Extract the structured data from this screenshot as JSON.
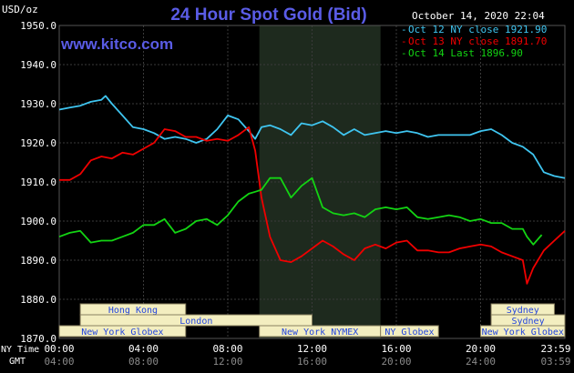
{
  "chart_data": {
    "type": "line",
    "title": "24 Hour Spot Gold (Bid)",
    "ylabel": "USD/oz",
    "watermark": "www.kitco.com",
    "timestamp": "October 14, 2020 22:04",
    "ylim": [
      1870,
      1950
    ],
    "yticks": [
      "1950.0",
      "1940.0",
      "1930.0",
      "1920.0",
      "1910.0",
      "1900.0",
      "1890.0",
      "1880.0",
      "1870.0"
    ],
    "x_axis_ny_label": "NY Time",
    "x_axis_gmt_label": "GMT",
    "x_ticks_ny": [
      "00:00",
      "04:00",
      "08:00",
      "12:00",
      "16:00",
      "20:00",
      "23:59"
    ],
    "x_ticks_gmt": [
      "04:00",
      "08:00",
      "12:00",
      "16:00",
      "20:00",
      "24:00",
      "03:59"
    ],
    "x_tick_hours": [
      0,
      4,
      8,
      12,
      16,
      20,
      24
    ],
    "shaded_period_hours": [
      9.5,
      15.25
    ],
    "sessions": [
      {
        "label": "Hong Kong",
        "start": 1.0,
        "end": 6.0,
        "row": 0
      },
      {
        "label": "Sydney",
        "start": 20.5,
        "end": 23.5,
        "row": 0
      },
      {
        "label": "London",
        "start": 1.0,
        "end": 12.0,
        "row": 1
      },
      {
        "label": "Sydney",
        "start": 20.5,
        "end": 24.0,
        "row": 1
      },
      {
        "label": "New York Globex",
        "start": 0.0,
        "end": 6.0,
        "row": 2
      },
      {
        "label": "New York NYMEX",
        "start": 9.5,
        "end": 15.25,
        "row": 2
      },
      {
        "label": "NY Globex",
        "start": 15.25,
        "end": 18.0,
        "row": 2
      },
      {
        "label": "New York Globex",
        "start": 20.0,
        "end": 24.0,
        "row": 2
      }
    ],
    "series": [
      {
        "name": "Oct 12 NY close 1921.90",
        "color": "#3fc5f0",
        "x": [
          0,
          0.5,
          1,
          1.5,
          2,
          2.2,
          2.5,
          3,
          3.5,
          4,
          4.5,
          5,
          5.5,
          6,
          6.5,
          7,
          7.5,
          8,
          8.5,
          9,
          9.3,
          9.6,
          10,
          10.5,
          11,
          11.5,
          12,
          12.5,
          13,
          13.5,
          14,
          14.5,
          15,
          15.5,
          16,
          16.5,
          17,
          17.5,
          18,
          18.5,
          19,
          19.5,
          20,
          20.5,
          21,
          21.5,
          22,
          22.5,
          23,
          23.5,
          24
        ],
        "y": [
          1928.5,
          1929,
          1929.5,
          1930.5,
          1931,
          1932,
          1930,
          1927,
          1924,
          1923.5,
          1922.5,
          1921,
          1921.5,
          1921,
          1920,
          1921,
          1923.5,
          1927,
          1926,
          1923,
          1921,
          1924,
          1924.5,
          1923.5,
          1922,
          1925,
          1924.5,
          1925.5,
          1924,
          1922,
          1923.5,
          1922,
          1922.5,
          1923,
          1922.5,
          1923,
          1922.5,
          1921.5,
          1922,
          1922,
          1922,
          1922,
          1923,
          1923.5,
          1922,
          1920,
          1919,
          1917,
          1912.5,
          1911.5,
          1911
        ]
      },
      {
        "name": "Oct 13 NY close 1891.70",
        "color": "#f00000",
        "x": [
          0,
          0.5,
          1,
          1.5,
          2,
          2.5,
          3,
          3.5,
          4,
          4.5,
          5,
          5.5,
          6,
          6.5,
          7,
          7.5,
          8,
          8.5,
          9,
          9.3,
          9.6,
          10,
          10.5,
          11,
          11.5,
          12,
          12.5,
          13,
          13.5,
          14,
          14.5,
          15,
          15.5,
          16,
          16.5,
          17,
          17.5,
          18,
          18.5,
          19,
          19.5,
          20,
          20.5,
          21,
          21.5,
          22,
          22.2,
          22.5,
          23,
          23.5,
          24
        ],
        "y": [
          1910.5,
          1910.5,
          1912,
          1915.5,
          1916.5,
          1916,
          1917.5,
          1917,
          1918.5,
          1920,
          1923.5,
          1923,
          1921.5,
          1921.5,
          1920.5,
          1921,
          1920.5,
          1922,
          1924,
          1918,
          1906,
          1896,
          1890,
          1889.5,
          1891,
          1893,
          1895,
          1893.5,
          1891.5,
          1890,
          1893,
          1894,
          1893,
          1894.5,
          1895,
          1892.5,
          1892.5,
          1892,
          1892,
          1893,
          1893.5,
          1894,
          1893.5,
          1892,
          1891,
          1890,
          1884,
          1888,
          1892.5,
          1895,
          1897.5
        ]
      },
      {
        "name": "Oct 14 Last 1896.90",
        "color": "#13d413",
        "x": [
          0,
          0.5,
          1,
          1.5,
          2,
          2.5,
          3,
          3.5,
          4,
          4.5,
          5,
          5.5,
          6,
          6.5,
          7,
          7.5,
          8,
          8.5,
          9,
          9.3,
          9.6,
          10,
          10.5,
          11,
          11.5,
          12,
          12.5,
          13,
          13.5,
          14,
          14.5,
          15,
          15.5,
          16,
          16.5,
          17,
          17.5,
          18,
          18.5,
          19,
          19.5,
          20,
          20.5,
          21,
          21.5,
          22,
          22.2,
          22.5,
          22.9
        ],
        "y": [
          1896,
          1897,
          1897.5,
          1894.5,
          1895,
          1895,
          1896,
          1897,
          1899,
          1899,
          1900.5,
          1897,
          1898,
          1900,
          1900.5,
          1899,
          1901.5,
          1905,
          1907,
          1907.5,
          1908,
          1911,
          1911,
          1906,
          1909,
          1911,
          1903.5,
          1902,
          1901.5,
          1902,
          1901,
          1903,
          1903.5,
          1903,
          1903.5,
          1901,
          1900.5,
          1901,
          1901.5,
          1901,
          1900,
          1900.5,
          1899.5,
          1899.5,
          1898,
          1898,
          1896,
          1894,
          1896.5
        ]
      }
    ]
  }
}
